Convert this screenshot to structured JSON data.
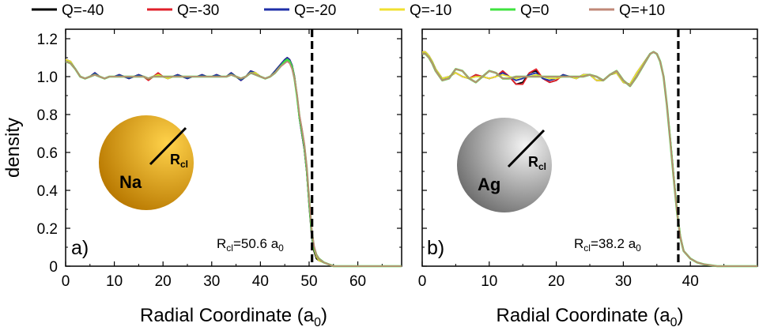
{
  "legend": [
    {
      "label": "Q=-40",
      "color": "#000000"
    },
    {
      "label": "Q=-30",
      "color": "#e0202a"
    },
    {
      "label": "Q=-20",
      "color": "#1f2fa8"
    },
    {
      "label": "Q=-10",
      "color": "#f0e030"
    },
    {
      "label": "Q=0",
      "color": "#3fe23f"
    },
    {
      "label": "Q=+10",
      "color": "#c08878"
    }
  ],
  "chart_data": [
    {
      "type": "line",
      "panel_label": "a)",
      "xlabel": "Radial Coordinate (a",
      "xlabel_sub": "0",
      "xlabel_end": ")",
      "ylabel": "density",
      "xlim": [
        0,
        69
      ],
      "ylim": [
        0,
        1.25
      ],
      "xticks": [
        0,
        10,
        20,
        30,
        40,
        50,
        60
      ],
      "yticks": [
        0,
        0.2,
        0.4,
        0.6,
        0.8,
        1.0,
        1.2
      ],
      "ytick_labels": [
        "0",
        "0.2",
        "0.4",
        "0.6",
        "0.8",
        "1.0",
        "1.2"
      ],
      "rcl_value": 50.6,
      "rcl_label": {
        "main": "R",
        "sub": "cl",
        "text": "=50.6 a",
        "unit_sub": "0"
      },
      "sphere": {
        "label": "Na",
        "r_main": "R",
        "r_sub": "cl",
        "color_light": "#ffd24a",
        "color_dark": "#b87800"
      },
      "x": [
        0,
        1,
        2,
        3,
        4,
        5,
        6,
        7,
        8,
        9,
        10,
        11,
        12,
        13,
        14,
        15,
        16,
        17,
        18,
        19,
        20,
        21,
        22,
        23,
        24,
        25,
        26,
        27,
        28,
        29,
        30,
        31,
        32,
        33,
        34,
        35,
        36,
        37,
        38,
        39,
        40,
        41,
        42,
        43,
        44,
        45,
        45.5,
        46,
        46.5,
        47,
        47.5,
        48,
        48.5,
        49,
        49.5,
        50,
        50.5,
        51,
        51.5,
        52,
        53,
        54,
        55,
        56,
        58,
        60,
        64,
        69
      ],
      "series": [
        {
          "name": "Q=-40",
          "values": [
            1.09,
            1.08,
            1.04,
            1.0,
            0.99,
            1.0,
            1.02,
            1.0,
            0.99,
            1.0,
            1.0,
            1.01,
            1.0,
            0.99,
            1.0,
            1.01,
            1.0,
            0.99,
            1.0,
            1.01,
            1.0,
            0.99,
            1.0,
            1.01,
            1.0,
            0.99,
            1.0,
            1.0,
            1.01,
            1.0,
            1.0,
            1.01,
            1.0,
            1.0,
            1.02,
            1.0,
            0.98,
            1.0,
            1.03,
            1.02,
            1.0,
            0.99,
            1.0,
            1.03,
            1.06,
            1.09,
            1.1,
            1.09,
            1.06,
            1.0,
            0.9,
            0.78,
            0.7,
            0.62,
            0.5,
            0.32,
            0.16,
            0.08,
            0.04,
            0.03,
            0.02,
            0.01,
            0.0,
            0.0,
            0.0,
            0.0,
            0.0,
            0.0
          ]
        },
        {
          "name": "Q=-30",
          "values": [
            1.09,
            1.08,
            1.04,
            1.0,
            0.99,
            1.0,
            1.02,
            1.0,
            0.99,
            1.0,
            1.0,
            1.01,
            1.0,
            0.99,
            1.0,
            1.01,
            1.0,
            0.98,
            1.0,
            1.02,
            1.0,
            0.99,
            1.0,
            1.01,
            1.0,
            0.99,
            1.0,
            1.0,
            1.01,
            1.0,
            1.0,
            1.01,
            1.0,
            1.0,
            1.02,
            1.0,
            0.98,
            1.0,
            1.03,
            1.02,
            1.0,
            0.99,
            1.0,
            1.03,
            1.06,
            1.09,
            1.1,
            1.09,
            1.06,
            1.0,
            0.9,
            0.78,
            0.7,
            0.62,
            0.5,
            0.33,
            0.17,
            0.09,
            0.05,
            0.03,
            0.02,
            0.01,
            0.0,
            0.0,
            0.0,
            0.0,
            0.0,
            0.0
          ]
        },
        {
          "name": "Q=-20",
          "values": [
            1.09,
            1.08,
            1.04,
            1.0,
            0.99,
            1.0,
            1.02,
            1.0,
            0.99,
            1.0,
            1.0,
            1.01,
            1.0,
            0.99,
            1.0,
            1.01,
            1.0,
            0.99,
            1.0,
            1.01,
            1.0,
            0.99,
            1.0,
            1.01,
            1.0,
            0.99,
            1.0,
            1.0,
            1.01,
            1.0,
            1.0,
            1.01,
            1.0,
            1.0,
            1.02,
            1.0,
            0.98,
            1.0,
            1.03,
            1.02,
            1.0,
            0.99,
            1.0,
            1.03,
            1.06,
            1.09,
            1.1,
            1.09,
            1.06,
            1.0,
            0.9,
            0.78,
            0.7,
            0.62,
            0.5,
            0.33,
            0.17,
            0.09,
            0.05,
            0.03,
            0.02,
            0.01,
            0.0,
            0.0,
            0.0,
            0.0,
            0.0,
            0.0
          ]
        },
        {
          "name": "Q=-10",
          "values": [
            1.09,
            1.08,
            1.04,
            1.0,
            0.99,
            1.0,
            1.01,
            1.0,
            0.99,
            1.0,
            1.0,
            1.0,
            1.0,
            1.0,
            1.0,
            1.0,
            1.0,
            0.99,
            1.0,
            1.01,
            1.0,
            0.99,
            1.0,
            1.0,
            1.0,
            1.0,
            1.0,
            1.0,
            1.0,
            1.0,
            1.0,
            1.0,
            1.0,
            1.0,
            1.01,
            1.0,
            0.99,
            1.0,
            1.02,
            1.02,
            1.0,
            0.99,
            1.0,
            1.02,
            1.05,
            1.08,
            1.09,
            1.08,
            1.05,
            0.99,
            0.9,
            0.79,
            0.71,
            0.63,
            0.51,
            0.34,
            0.18,
            0.09,
            0.05,
            0.03,
            0.02,
            0.01,
            0.0,
            0.0,
            0.0,
            0.0,
            0.0,
            0.0
          ]
        },
        {
          "name": "Q=0",
          "values": [
            1.08,
            1.07,
            1.04,
            1.0,
            0.99,
            1.0,
            1.01,
            1.0,
            0.99,
            1.0,
            1.0,
            1.0,
            1.0,
            1.0,
            1.0,
            1.0,
            1.0,
            0.99,
            1.0,
            1.0,
            1.0,
            1.0,
            1.0,
            1.0,
            1.0,
            1.0,
            1.0,
            1.0,
            1.0,
            1.0,
            1.0,
            1.0,
            1.0,
            1.0,
            1.01,
            1.0,
            0.99,
            1.0,
            1.02,
            1.01,
            1.0,
            0.99,
            1.0,
            1.02,
            1.05,
            1.08,
            1.09,
            1.08,
            1.05,
            0.99,
            0.9,
            0.79,
            0.72,
            0.64,
            0.52,
            0.35,
            0.19,
            0.1,
            0.06,
            0.04,
            0.02,
            0.01,
            0.0,
            0.0,
            0.0,
            0.0,
            0.0,
            0.0
          ]
        },
        {
          "name": "Q=+10",
          "values": [
            1.08,
            1.07,
            1.04,
            1.0,
            0.99,
            1.0,
            1.01,
            1.0,
            0.99,
            1.0,
            1.0,
            1.0,
            1.0,
            1.0,
            1.0,
            1.0,
            1.0,
            0.99,
            1.0,
            1.0,
            1.0,
            1.0,
            1.0,
            1.0,
            1.0,
            1.0,
            1.0,
            1.0,
            1.0,
            1.0,
            1.0,
            1.0,
            1.0,
            1.0,
            1.01,
            1.0,
            0.99,
            1.0,
            1.02,
            1.01,
            1.0,
            0.99,
            1.0,
            1.02,
            1.05,
            1.07,
            1.08,
            1.07,
            1.04,
            0.99,
            0.91,
            0.8,
            0.73,
            0.65,
            0.53,
            0.36,
            0.2,
            0.11,
            0.06,
            0.04,
            0.02,
            0.01,
            0.0,
            0.0,
            0.0,
            0.0,
            0.0,
            0.0
          ]
        }
      ]
    },
    {
      "type": "line",
      "panel_label": "b)",
      "xlabel": "Radial Coordinate (a",
      "xlabel_sub": "0",
      "xlabel_end": ")",
      "ylabel": "",
      "xlim": [
        0,
        50
      ],
      "ylim": [
        0,
        1.25
      ],
      "xticks": [
        0,
        10,
        20,
        30,
        40
      ],
      "yticks": [
        0,
        0.2,
        0.4,
        0.6,
        0.8,
        1.0,
        1.2
      ],
      "ytick_labels": [],
      "rcl_value": 38.2,
      "rcl_label": {
        "main": "R",
        "sub": "cl",
        "text": "=38.2 a",
        "unit_sub": "0"
      },
      "sphere": {
        "label": "Ag",
        "r_main": "R",
        "r_sub": "cl",
        "color_light": "#f4f4f4",
        "color_dark": "#6e6e6e"
      },
      "x": [
        0,
        0.5,
        1,
        1.5,
        2,
        3,
        4,
        5,
        6,
        7,
        8,
        9,
        10,
        11,
        12,
        13,
        14,
        15,
        16,
        17,
        18,
        19,
        20,
        21,
        22,
        23,
        24,
        25,
        26,
        27,
        28,
        29,
        30,
        31,
        32,
        33,
        34,
        34.5,
        35,
        35.5,
        36,
        36.5,
        37,
        37.5,
        38,
        38.5,
        39,
        40,
        41,
        42,
        44,
        46,
        50
      ],
      "series": [
        {
          "name": "Q=-40",
          "values": [
            1.13,
            1.13,
            1.11,
            1.08,
            1.04,
            0.99,
            1.0,
            1.02,
            1.0,
            0.99,
            1.01,
            1.0,
            0.99,
            1.0,
            1.03,
            1.0,
            0.96,
            0.97,
            1.02,
            1.03,
            0.99,
            0.97,
            0.98,
            1.01,
            1.0,
            0.99,
            1.01,
            1.01,
            0.98,
            0.98,
            1.01,
            1.02,
            0.97,
            0.96,
            1.02,
            1.07,
            1.12,
            1.13,
            1.12,
            1.08,
            1.0,
            0.85,
            0.67,
            0.48,
            0.3,
            0.15,
            0.08,
            0.04,
            0.02,
            0.01,
            0.0,
            0.0,
            0.0
          ]
        },
        {
          "name": "Q=-30",
          "values": [
            1.13,
            1.13,
            1.11,
            1.08,
            1.04,
            0.99,
            1.0,
            1.02,
            1.0,
            0.99,
            1.01,
            1.0,
            0.99,
            1.0,
            1.03,
            1.0,
            0.96,
            0.96,
            1.02,
            1.04,
            0.99,
            0.97,
            0.98,
            1.01,
            1.0,
            0.99,
            1.01,
            1.01,
            0.98,
            0.98,
            1.01,
            1.02,
            0.97,
            0.96,
            1.02,
            1.07,
            1.12,
            1.13,
            1.12,
            1.08,
            1.0,
            0.85,
            0.67,
            0.48,
            0.3,
            0.16,
            0.08,
            0.04,
            0.02,
            0.01,
            0.0,
            0.0,
            0.0
          ]
        },
        {
          "name": "Q=-20",
          "values": [
            1.13,
            1.13,
            1.11,
            1.08,
            1.04,
            0.99,
            1.0,
            1.02,
            1.0,
            0.99,
            1.0,
            1.0,
            0.99,
            1.0,
            1.02,
            1.0,
            0.98,
            0.99,
            1.01,
            1.02,
            0.99,
            0.98,
            0.99,
            1.01,
            1.0,
            0.99,
            1.01,
            1.01,
            0.98,
            0.98,
            1.01,
            1.02,
            0.97,
            0.96,
            1.02,
            1.07,
            1.12,
            1.13,
            1.12,
            1.08,
            1.0,
            0.85,
            0.67,
            0.48,
            0.3,
            0.15,
            0.08,
            0.04,
            0.02,
            0.01,
            0.0,
            0.0,
            0.0
          ]
        },
        {
          "name": "Q=-10",
          "values": [
            1.13,
            1.13,
            1.11,
            1.08,
            1.04,
            0.99,
            1.0,
            1.02,
            1.0,
            0.99,
            1.0,
            1.0,
            0.99,
            1.0,
            1.01,
            1.0,
            0.99,
            1.0,
            1.0,
            1.01,
            1.0,
            0.99,
            0.99,
            1.0,
            1.0,
            0.99,
            1.01,
            1.01,
            0.98,
            0.98,
            1.01,
            1.02,
            0.97,
            0.96,
            1.02,
            1.07,
            1.12,
            1.13,
            1.12,
            1.08,
            1.0,
            0.85,
            0.67,
            0.48,
            0.3,
            0.15,
            0.08,
            0.04,
            0.02,
            0.01,
            0.0,
            0.0,
            0.0
          ]
        },
        {
          "name": "Q=0",
          "values": [
            1.12,
            1.12,
            1.1,
            1.07,
            1.03,
            0.98,
            0.99,
            1.04,
            1.03,
            0.99,
            0.97,
            1.0,
            1.03,
            1.02,
            0.99,
            0.99,
            1.0,
            1.0,
            1.0,
            1.0,
            1.0,
            1.0,
            1.0,
            1.0,
            1.0,
            1.0,
            1.0,
            1.01,
            1.0,
            0.98,
            1.01,
            1.03,
            0.98,
            0.95,
            1.0,
            1.06,
            1.12,
            1.13,
            1.12,
            1.08,
            1.0,
            0.85,
            0.66,
            0.47,
            0.29,
            0.15,
            0.08,
            0.04,
            0.02,
            0.01,
            0.0,
            0.0,
            0.0
          ]
        },
        {
          "name": "Q=+10",
          "values": [
            1.12,
            1.12,
            1.1,
            1.07,
            1.03,
            0.98,
            0.99,
            1.04,
            1.03,
            0.99,
            0.97,
            1.0,
            1.03,
            1.02,
            0.99,
            0.99,
            1.0,
            1.0,
            1.0,
            1.0,
            1.0,
            1.0,
            1.0,
            1.0,
            1.0,
            1.0,
            1.0,
            1.01,
            1.0,
            0.98,
            1.01,
            1.03,
            0.98,
            0.95,
            1.0,
            1.06,
            1.12,
            1.13,
            1.12,
            1.08,
            1.0,
            0.85,
            0.66,
            0.47,
            0.29,
            0.15,
            0.08,
            0.04,
            0.02,
            0.01,
            0.0,
            0.0,
            0.0
          ]
        }
      ]
    }
  ]
}
